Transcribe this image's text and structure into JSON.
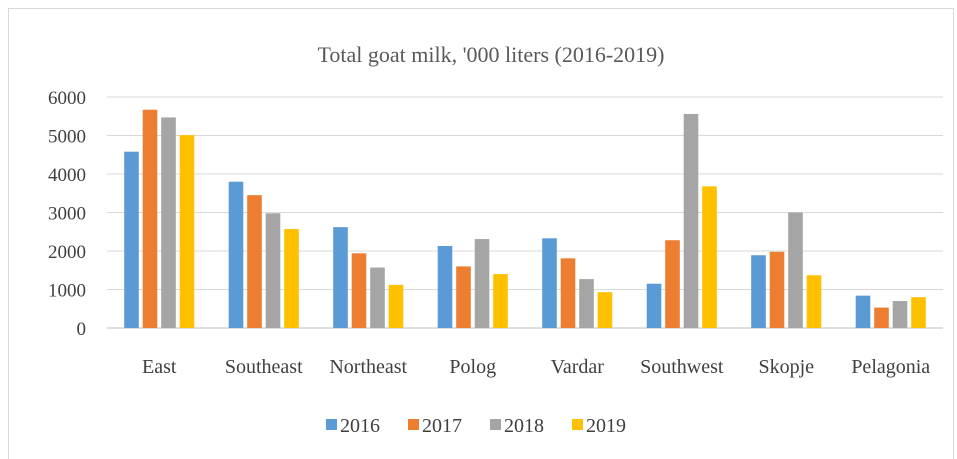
{
  "chart_data": {
    "type": "bar",
    "title": "Total goat milk, '000 liters  (2016-2019)",
    "xlabel": "",
    "ylabel": "",
    "ylim": [
      0,
      6000
    ],
    "yticks": [
      0,
      1000,
      2000,
      3000,
      4000,
      5000,
      6000
    ],
    "grid": true,
    "legend_position": "bottom",
    "categories": [
      "East",
      "Southeast",
      "Northeast",
      "Polog",
      "Vardar",
      "Southwest",
      "Skopje",
      "Pelagonia"
    ],
    "series": [
      {
        "name": "2016",
        "color": "#5b9bd5",
        "values": [
          4580,
          3800,
          2620,
          2130,
          2330,
          1150,
          1890,
          840
        ]
      },
      {
        "name": "2017",
        "color": "#ed7d31",
        "values": [
          5670,
          3450,
          1940,
          1600,
          1810,
          2280,
          1980,
          530
        ]
      },
      {
        "name": "2018",
        "color": "#a5a5a5",
        "values": [
          5470,
          2980,
          1570,
          2310,
          1270,
          5560,
          3000,
          700
        ]
      },
      {
        "name": "2019",
        "color": "#ffc000",
        "values": [
          5010,
          2570,
          1120,
          1400,
          930,
          3680,
          1370,
          800
        ]
      }
    ]
  }
}
